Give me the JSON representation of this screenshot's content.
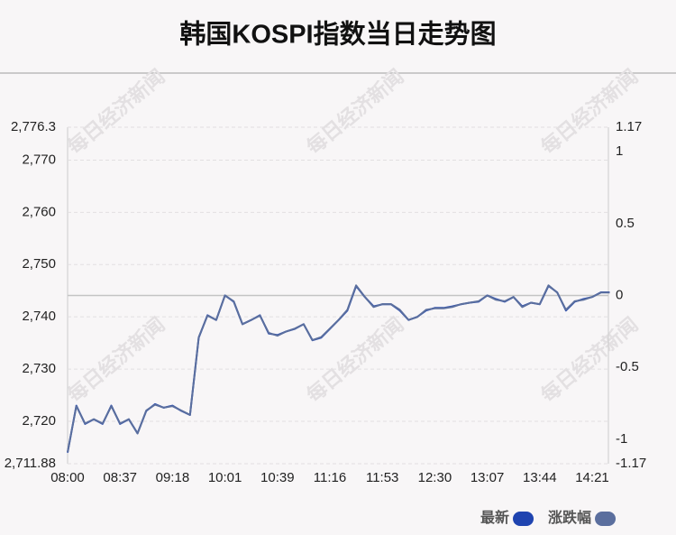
{
  "chart_data": {
    "type": "line",
    "title": "韩国KOSPI指数当日走势图",
    "watermark": "每日经济新闻",
    "categories": [
      "08:00",
      null,
      null,
      null,
      null,
      null,
      "08:37",
      null,
      null,
      null,
      null,
      null,
      "09:18",
      null,
      null,
      null,
      null,
      null,
      "10:01",
      null,
      null,
      null,
      null,
      null,
      "10:39",
      null,
      null,
      null,
      null,
      null,
      "11:16",
      null,
      null,
      null,
      null,
      null,
      "11:53",
      null,
      null,
      null,
      null,
      null,
      "12:30",
      null,
      null,
      null,
      null,
      null,
      "13:07",
      null,
      null,
      null,
      null,
      null,
      "13:44",
      null,
      null,
      null,
      null,
      null,
      "14:21",
      null,
      null
    ],
    "series": [
      {
        "name": "最新",
        "color": "#1f44b0",
        "axis": "y",
        "values": [
          2714,
          2723,
          2719.5,
          2720.4,
          2719.5,
          2723,
          2719.5,
          2720.4,
          2717.7,
          2722,
          2723.3,
          2722.6,
          2723,
          2722,
          2721.2,
          2736,
          2740.3,
          2739.4,
          2744.1,
          2742.9,
          2738.6,
          2739.4,
          2740.3,
          2736.8,
          2736.5,
          2737.2,
          2737.7,
          2738.6,
          2735.5,
          2736,
          2737.7,
          2739.4,
          2741.2,
          2745.9,
          2743.8,
          2742,
          2742.4,
          2742.4,
          2741.2,
          2739.4,
          2740,
          2741.2,
          2741.7,
          2741.7,
          2742,
          2742.4,
          2742.7,
          2742.9,
          2744.1,
          2743.4,
          2742.9,
          2743.8,
          2742,
          2742.7,
          2742.4,
          2745.9,
          2744.7,
          2741.2,
          2742.9,
          2743.4,
          2743.8,
          2744.7,
          2744.7
        ]
      },
      {
        "name": "涨跌幅",
        "color": "#5b6f9e",
        "axis": "y2",
        "values": [
          -1.09,
          -0.77,
          -0.89,
          -0.86,
          -0.89,
          -0.77,
          -0.89,
          -0.86,
          -0.96,
          -0.8,
          -0.76,
          -0.78,
          -0.77,
          -0.8,
          -0.83,
          -0.29,
          -0.14,
          -0.17,
          0,
          -0.04,
          -0.2,
          -0.17,
          -0.14,
          -0.26,
          -0.28,
          -0.25,
          -0.23,
          -0.2,
          -0.31,
          -0.29,
          -0.23,
          -0.17,
          -0.1,
          0.07,
          -0.01,
          -0.08,
          -0.06,
          -0.06,
          -0.1,
          -0.17,
          -0.15,
          -0.1,
          -0.09,
          -0.09,
          -0.08,
          -0.06,
          -0.05,
          -0.04,
          0,
          -0.03,
          -0.04,
          -0.01,
          -0.08,
          -0.05,
          -0.06,
          0.07,
          0.02,
          -0.1,
          -0.04,
          -0.03,
          -0.01,
          0.02,
          0.02
        ]
      }
    ],
    "ylim": [
      2711.88,
      2776.3
    ],
    "yticks": [
      {
        "value": 2711.88,
        "label": "2,711.88"
      },
      {
        "value": 2720,
        "label": "2,720"
      },
      {
        "value": 2730,
        "label": "2,730"
      },
      {
        "value": 2740,
        "label": "2,740"
      },
      {
        "value": 2750,
        "label": "2,750"
      },
      {
        "value": 2760,
        "label": "2,760"
      },
      {
        "value": 2770,
        "label": "2,770"
      },
      {
        "value": 2776.3,
        "label": "2,776.3"
      }
    ],
    "y2lim": [
      -1.17,
      1.17
    ],
    "y2ticks": [
      -1.17,
      -1,
      -0.5,
      0,
      0.5,
      1,
      1.17
    ],
    "grid": true,
    "legend": "bottom-right"
  }
}
